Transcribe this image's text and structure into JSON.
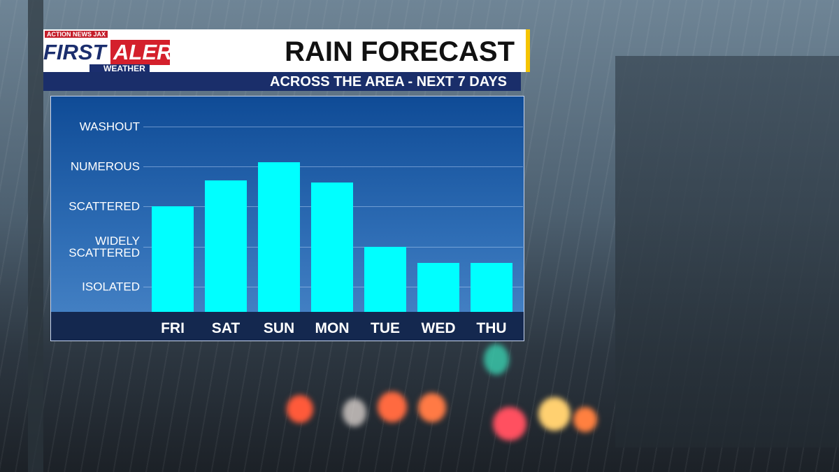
{
  "logo": {
    "network": "ACTION NEWS JAX",
    "first": "FIRST",
    "alert": "ALERT",
    "weather": "WEATHER"
  },
  "chart_data": {
    "type": "bar",
    "title": "RAIN FORECAST",
    "subtitle": "ACROSS THE AREA - NEXT 7 DAYS",
    "categories": [
      "FRI",
      "SAT",
      "SUN",
      "MON",
      "TUE",
      "WED",
      "THU"
    ],
    "values": [
      3.0,
      3.65,
      4.1,
      3.6,
      2.0,
      1.6,
      1.6
    ],
    "color": "#00ffff",
    "ylim": [
      0.37,
      5.75
    ],
    "yticks": [
      {
        "value": 1,
        "label": "ISOLATED"
      },
      {
        "value": 2,
        "label": "WIDELY SCATTERED"
      },
      {
        "value": 3,
        "label": "SCATTERED"
      },
      {
        "value": 4,
        "label": "NUMEROUS"
      },
      {
        "value": 5,
        "label": "WASHOUT"
      }
    ],
    "grid": true
  }
}
